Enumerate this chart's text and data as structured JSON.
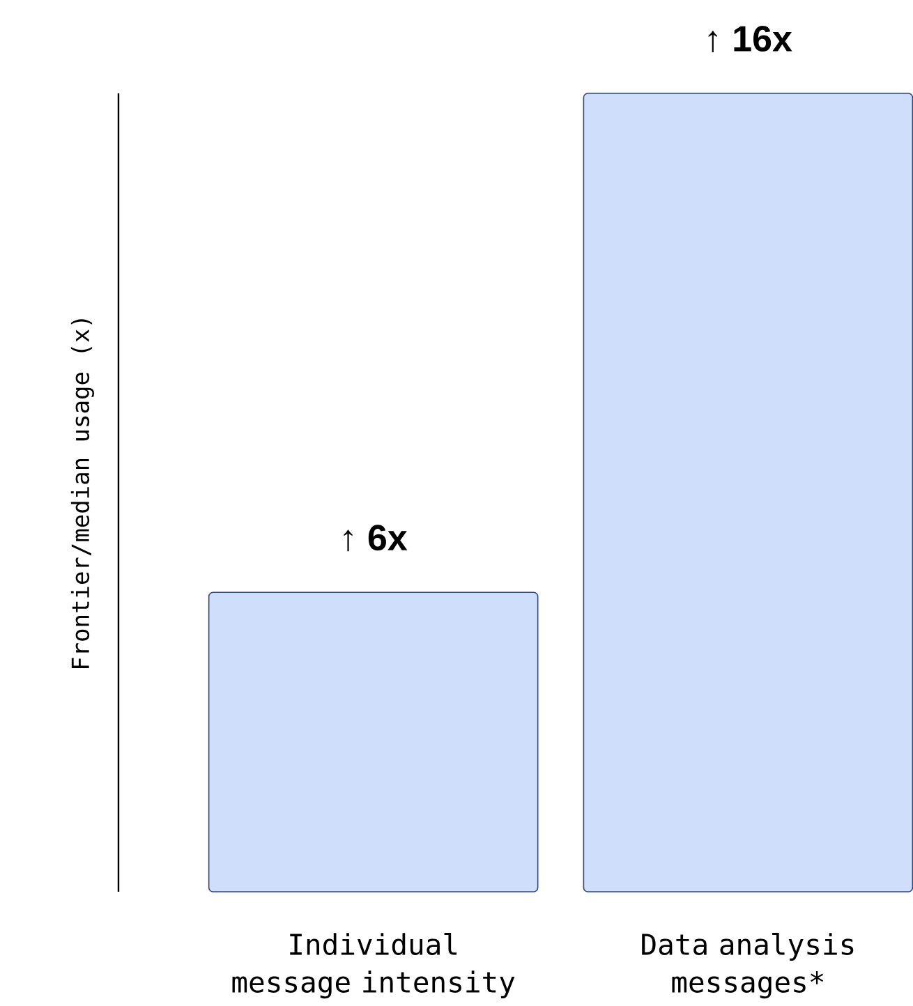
{
  "chart_data": {
    "type": "bar",
    "ylabel": "Frontier/median usage (x)",
    "categories": [
      "Individual message intensity",
      "Data analysis messages*"
    ],
    "values": [
      6,
      16
    ],
    "value_labels": [
      "↑ 6x",
      "↑ 16x"
    ],
    "color": "#cfdffb",
    "ylim": [
      0,
      16
    ]
  }
}
